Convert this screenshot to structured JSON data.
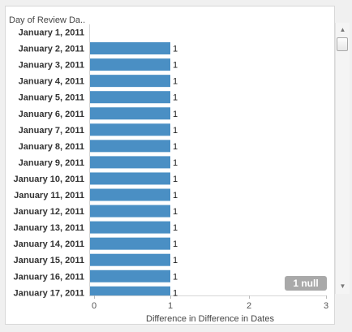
{
  "header": {
    "row_field_label": "Day of Review Da.."
  },
  "chart_data": {
    "type": "bar",
    "orientation": "horizontal",
    "categories": [
      "January 1, 2011",
      "January 2, 2011",
      "January 3, 2011",
      "January 4, 2011",
      "January 5, 2011",
      "January 6, 2011",
      "January 7, 2011",
      "January 8, 2011",
      "January 9, 2011",
      "January 10, 2011",
      "January 11, 2011",
      "January 12, 2011",
      "January 13, 2011",
      "January 14, 2011",
      "January 15, 2011",
      "January 16, 2011",
      "January 17, 2011"
    ],
    "values": [
      null,
      1,
      1,
      1,
      1,
      1,
      1,
      1,
      1,
      1,
      1,
      1,
      1,
      1,
      1,
      1,
      1
    ],
    "value_labels": [
      "",
      "1",
      "1",
      "1",
      "1",
      "1",
      "1",
      "1",
      "1",
      "1",
      "1",
      "1",
      "1",
      "1",
      "1",
      "1",
      "1"
    ],
    "xlabel": "Difference in Difference in Dates",
    "xlim": [
      0,
      3
    ],
    "xticks": [
      "0",
      "1",
      "2",
      "3"
    ],
    "bar_color": "#4a8fc4",
    "grid": false
  },
  "null_indicator": {
    "label": "1 null",
    "color": "#a9a9a9"
  },
  "scrollbar": {
    "up_glyph": "▲",
    "down_glyph": "▼"
  }
}
